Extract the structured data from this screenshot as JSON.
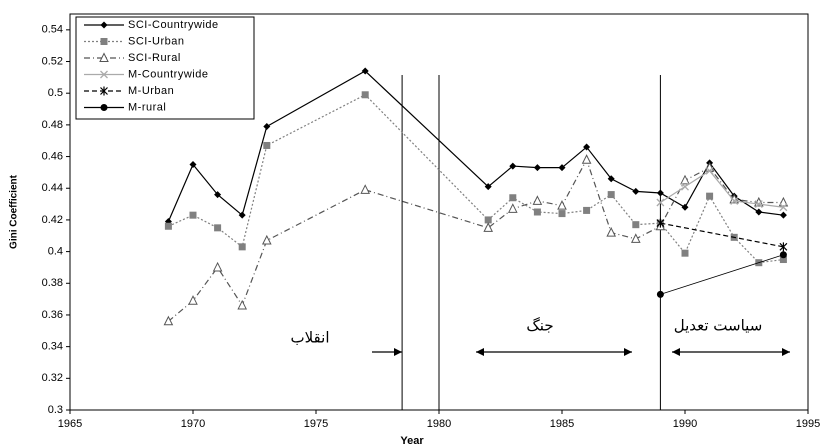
{
  "chart_data": {
    "type": "line",
    "x_label": "Year",
    "y_label": "Gini Coefficient",
    "xlim": [
      1965,
      1995
    ],
    "xticks": [
      1965,
      1970,
      1975,
      1980,
      1985,
      1990,
      1995
    ],
    "ylim": [
      0.3,
      0.55
    ],
    "yticks": [
      0.3,
      0.32,
      0.34,
      0.36,
      0.38,
      0.4,
      0.42,
      0.44,
      0.46,
      0.48,
      0.5,
      0.52,
      0.54
    ],
    "legend": "upper left",
    "vlines": [
      1978.5,
      1980,
      1989
    ],
    "annotations": [
      "انقلاب",
      "جنگ",
      "سیاست تعدیل"
    ],
    "series": [
      {
        "name": "SCI-Countrywide",
        "color": "#000000",
        "marker": "diamond",
        "dash": "solid",
        "x": [
          1969,
          1970,
          1971,
          1972,
          1973,
          1977,
          1982,
          1983,
          1984,
          1985,
          1986,
          1987,
          1988,
          1989,
          1990,
          1991,
          1992,
          1993,
          1994
        ],
        "values": [
          0.419,
          0.455,
          0.436,
          0.423,
          0.479,
          0.514,
          0.441,
          0.454,
          0.453,
          0.453,
          0.466,
          0.446,
          0.438,
          0.437,
          0.428,
          0.456,
          0.435,
          0.425,
          0.423
        ]
      },
      {
        "name": "SCI-Urban",
        "color": "#808080",
        "marker": "square",
        "dash": "dotted",
        "x": [
          1969,
          1970,
          1971,
          1972,
          1973,
          1977,
          1982,
          1983,
          1984,
          1985,
          1986,
          1987,
          1988,
          1989,
          1990,
          1991,
          1992,
          1993,
          1994
        ],
        "values": [
          0.416,
          0.423,
          0.415,
          0.403,
          0.467,
          0.499,
          0.42,
          0.434,
          0.425,
          0.424,
          0.426,
          0.436,
          0.417,
          0.418,
          0.399,
          0.435,
          0.409,
          0.393,
          0.395
        ]
      },
      {
        "name": "SCI-Rural",
        "color": "#555555",
        "marker": "triangle",
        "dash": "dashdot",
        "x": [
          1969,
          1970,
          1971,
          1972,
          1973,
          1977,
          1982,
          1983,
          1984,
          1985,
          1986,
          1987,
          1988,
          1989,
          1990,
          1991,
          1992,
          1993,
          1994
        ],
        "values": [
          0.356,
          0.369,
          0.39,
          0.366,
          0.407,
          0.439,
          0.415,
          0.427,
          0.432,
          0.429,
          0.458,
          0.412,
          0.408,
          0.416,
          0.445,
          0.453,
          0.433,
          0.431,
          0.431
        ]
      },
      {
        "name": "M-Countrywide",
        "color": "#aaaaaa",
        "marker": "x",
        "dash": "solid",
        "x": [
          1989,
          1990,
          1991,
          1992,
          1993,
          1994
        ],
        "values": [
          0.431,
          0.441,
          0.451,
          0.432,
          0.43,
          0.428
        ]
      },
      {
        "name": "M-Urban",
        "color": "#000000",
        "marker": "star",
        "dash": "dashed",
        "x": [
          1989,
          1994
        ],
        "values": [
          0.418,
          0.403
        ]
      },
      {
        "name": "M-rural",
        "color": "#000000",
        "marker": "circle",
        "dash": "thin",
        "x": [
          1989,
          1994
        ],
        "values": [
          0.373,
          0.398
        ]
      }
    ]
  }
}
